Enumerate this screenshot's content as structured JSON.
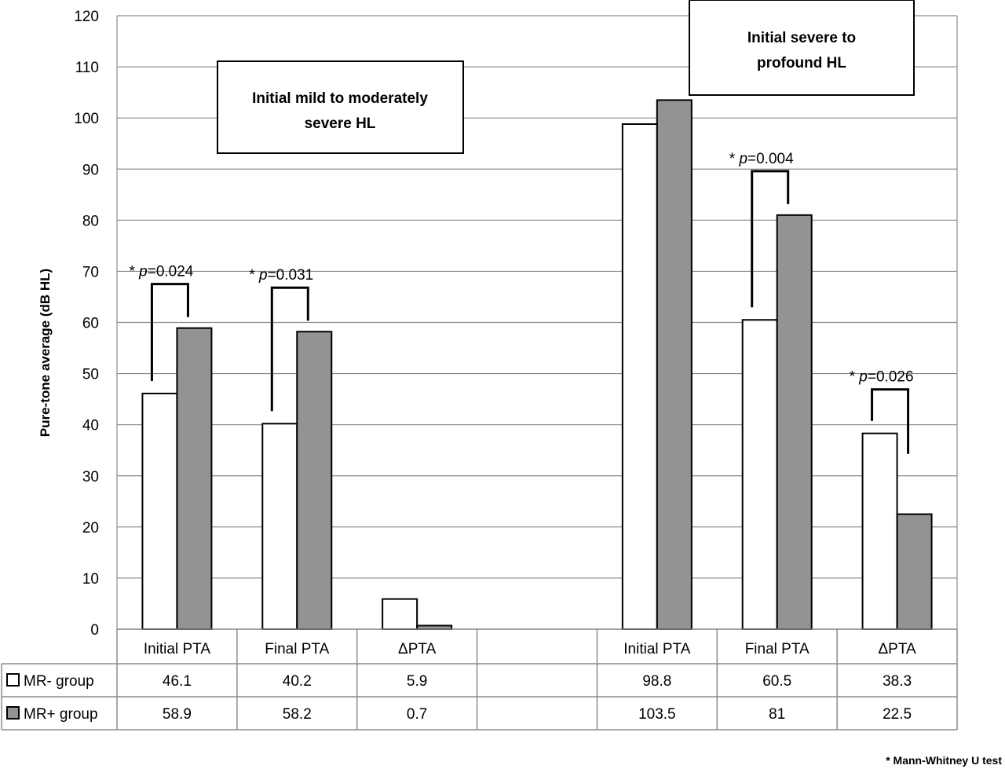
{
  "chart_data": {
    "type": "bar",
    "ylabel": "Pure-tone average (dB HL)",
    "ylim": [
      0,
      120
    ],
    "yticks": [
      0,
      10,
      20,
      30,
      40,
      50,
      60,
      70,
      80,
      90,
      100,
      110,
      120
    ],
    "grid": true,
    "categories": [
      "Initial PTA",
      "Final PTA",
      "ΔPTA",
      "",
      "Initial PTA",
      "Final PTA",
      "ΔPTA"
    ],
    "series": [
      {
        "name": "MR- group",
        "color": "#ffffff",
        "values": [
          46.1,
          40.2,
          5.9,
          null,
          98.8,
          60.5,
          38.3
        ]
      },
      {
        "name": "MR+ group",
        "color": "#939393",
        "values": [
          58.9,
          58.2,
          0.7,
          null,
          103.5,
          81,
          22.5
        ]
      }
    ],
    "table": {
      "rows": [
        {
          "label": "MR- group",
          "cells": [
            "46.1",
            "40.2",
            "5.9",
            "",
            "98.8",
            "60.5",
            "38.3"
          ]
        },
        {
          "label": "MR+ group",
          "cells": [
            "58.9",
            "58.2",
            "0.7",
            "",
            "103.5",
            "81",
            "22.5"
          ]
        }
      ]
    },
    "group_boxes": [
      {
        "lines": [
          "Initial  mild to moderately",
          "severe HL"
        ]
      },
      {
        "lines": [
          "Initial  severe to",
          "profound HL"
        ]
      }
    ],
    "annotations": [
      {
        "category_index": 0,
        "star": "* ",
        "p": "p",
        "value": "=0.024"
      },
      {
        "category_index": 1,
        "star": "* ",
        "p": "p",
        "value": "=0.031"
      },
      {
        "category_index": 5,
        "star": "* ",
        "p": "p",
        "value": "=0.004"
      },
      {
        "category_index": 6,
        "star": "* ",
        "p": "p",
        "value": "=0.026"
      }
    ],
    "footnote": "* Mann-Whitney U test"
  }
}
